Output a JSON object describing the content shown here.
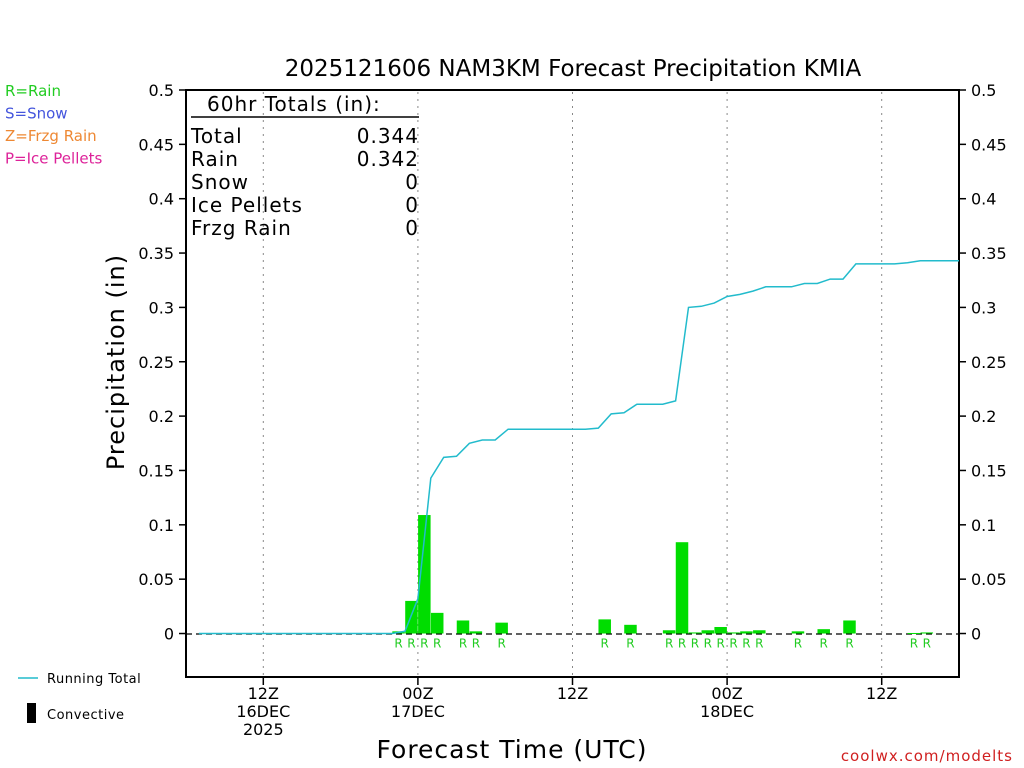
{
  "chart_data": {
    "type": "bar",
    "title": "2025121606 NAM3KM Forecast Precipitation KMIA",
    "xlabel": "Forecast Time (UTC)",
    "ylabel": "Precipitation (in)",
    "ylim": [
      -0.04,
      0.5
    ],
    "y_ticks": [
      "0.5",
      "0.45",
      "0.4",
      "0.35",
      "0.3",
      "0.25",
      "0.2",
      "0.15",
      "0.1",
      "0.05",
      "0"
    ],
    "y_tick_values": [
      0.5,
      0.45,
      0.4,
      0.35,
      0.3,
      0.25,
      0.2,
      0.15,
      0.1,
      0.05,
      0
    ],
    "xlim_hours": [
      0,
      60
    ],
    "x_ticks": [
      {
        "hour": 6,
        "lines": [
          "12Z",
          "16DEC",
          "2025"
        ]
      },
      {
        "hour": 18,
        "lines": [
          "00Z",
          "17DEC"
        ]
      },
      {
        "hour": 30,
        "lines": [
          "12Z"
        ]
      },
      {
        "hour": 42,
        "lines": [
          "00Z",
          "18DEC"
        ]
      },
      {
        "hour": 54,
        "lines": [
          "12Z"
        ]
      }
    ],
    "legend_types": [
      {
        "label": "R=Rain",
        "color": "#22cc22"
      },
      {
        "label": "S=Snow",
        "color": "#4455dd"
      },
      {
        "label": "Z=Frzg Rain",
        "color": "#ee8833"
      },
      {
        "label": "P=Ice Pellets",
        "color": "#dd2299"
      }
    ],
    "legend_lines": [
      {
        "label": "Running Total",
        "color": "#22bbcc"
      },
      {
        "label": "Convective",
        "color": "#000000"
      }
    ],
    "totals": {
      "heading": "60hr Totals (in):",
      "rows": [
        {
          "label": "Total",
          "value": "0.344"
        },
        {
          "label": "Rain",
          "value": "0.342"
        },
        {
          "label": "Snow",
          "value": "0"
        },
        {
          "label": "Ice Pellets",
          "value": "0"
        },
        {
          "label": "Frzg Rain",
          "value": "0"
        }
      ]
    },
    "bar_color": "#00dd00",
    "bars": [
      {
        "hour": 16.5,
        "value": 0.002,
        "type": "R"
      },
      {
        "hour": 17.5,
        "value": 0.03,
        "type": "R"
      },
      {
        "hour": 18.5,
        "value": 0.109,
        "type": "R"
      },
      {
        "hour": 19.5,
        "value": 0.019,
        "type": "R"
      },
      {
        "hour": 21.5,
        "value": 0.012,
        "type": "R"
      },
      {
        "hour": 22.5,
        "value": 0.002,
        "type": "R"
      },
      {
        "hour": 24.5,
        "value": 0.01,
        "type": "R"
      },
      {
        "hour": 32.5,
        "value": 0.013,
        "type": "R"
      },
      {
        "hour": 34.5,
        "value": 0.008,
        "type": "R"
      },
      {
        "hour": 37.5,
        "value": 0.003,
        "type": "R"
      },
      {
        "hour": 38.5,
        "value": 0.084,
        "type": "R"
      },
      {
        "hour": 39.5,
        "value": 0.001,
        "type": "R"
      },
      {
        "hour": 40.5,
        "value": 0.003,
        "type": "R"
      },
      {
        "hour": 41.5,
        "value": 0.006,
        "type": "R"
      },
      {
        "hour": 42.5,
        "value": 0.001,
        "type": "R"
      },
      {
        "hour": 43.5,
        "value": 0.002,
        "type": "R"
      },
      {
        "hour": 44.5,
        "value": 0.003,
        "type": "R"
      },
      {
        "hour": 47.5,
        "value": 0.002,
        "type": "R"
      },
      {
        "hour": 49.5,
        "value": 0.004,
        "type": "R"
      },
      {
        "hour": 51.5,
        "value": 0.012,
        "type": "R"
      },
      {
        "hour": 56.5,
        "value": 0.0005,
        "type": "R"
      },
      {
        "hour": 57.5,
        "value": 0.001,
        "type": "R"
      }
    ],
    "running_total_color": "#22bbcc",
    "running_total": [
      {
        "hour": 1,
        "value": 0
      },
      {
        "hour": 16,
        "value": 0
      },
      {
        "hour": 17,
        "value": 0.002
      },
      {
        "hour": 18,
        "value": 0.032
      },
      {
        "hour": 19,
        "value": 0.143
      },
      {
        "hour": 20,
        "value": 0.162
      },
      {
        "hour": 21,
        "value": 0.163
      },
      {
        "hour": 22,
        "value": 0.175
      },
      {
        "hour": 23,
        "value": 0.178
      },
      {
        "hour": 24,
        "value": 0.178
      },
      {
        "hour": 25,
        "value": 0.188
      },
      {
        "hour": 26,
        "value": 0.188
      },
      {
        "hour": 27,
        "value": 0.188
      },
      {
        "hour": 28,
        "value": 0.188
      },
      {
        "hour": 29,
        "value": 0.188
      },
      {
        "hour": 30,
        "value": 0.188
      },
      {
        "hour": 31,
        "value": 0.188
      },
      {
        "hour": 32,
        "value": 0.189
      },
      {
        "hour": 33,
        "value": 0.202
      },
      {
        "hour": 34,
        "value": 0.203
      },
      {
        "hour": 35,
        "value": 0.211
      },
      {
        "hour": 36,
        "value": 0.211
      },
      {
        "hour": 37,
        "value": 0.211
      },
      {
        "hour": 38,
        "value": 0.214
      },
      {
        "hour": 39,
        "value": 0.3
      },
      {
        "hour": 40,
        "value": 0.301
      },
      {
        "hour": 41,
        "value": 0.304
      },
      {
        "hour": 42,
        "value": 0.31
      },
      {
        "hour": 43,
        "value": 0.312
      },
      {
        "hour": 44,
        "value": 0.315
      },
      {
        "hour": 45,
        "value": 0.319
      },
      {
        "hour": 46,
        "value": 0.319
      },
      {
        "hour": 47,
        "value": 0.319
      },
      {
        "hour": 48,
        "value": 0.322
      },
      {
        "hour": 49,
        "value": 0.322
      },
      {
        "hour": 50,
        "value": 0.326
      },
      {
        "hour": 51,
        "value": 0.326
      },
      {
        "hour": 52,
        "value": 0.34
      },
      {
        "hour": 53,
        "value": 0.34
      },
      {
        "hour": 54,
        "value": 0.34
      },
      {
        "hour": 55,
        "value": 0.34
      },
      {
        "hour": 56,
        "value": 0.341
      },
      {
        "hour": 57,
        "value": 0.343
      },
      {
        "hour": 58,
        "value": 0.343
      },
      {
        "hour": 59,
        "value": 0.343
      },
      {
        "hour": 60,
        "value": 0.343
      }
    ]
  },
  "watermark": "coolwx.com/modelts"
}
